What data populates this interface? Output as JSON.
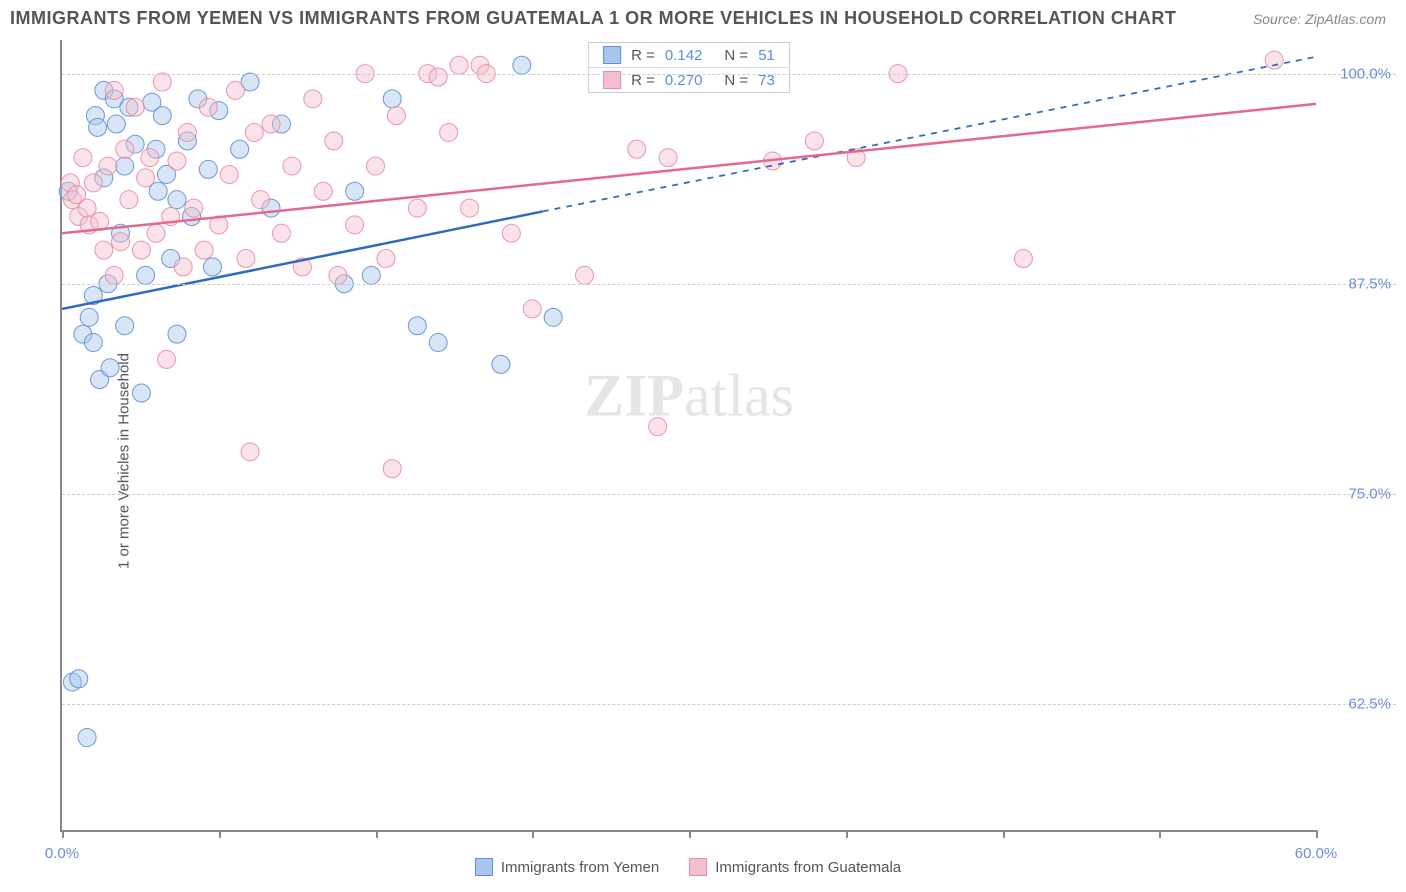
{
  "title": "IMMIGRANTS FROM YEMEN VS IMMIGRANTS FROM GUATEMALA 1 OR MORE VEHICLES IN HOUSEHOLD CORRELATION CHART",
  "source_label": "Source: ZipAtlas.com",
  "y_axis_label": "1 or more Vehicles in Household",
  "watermark_bold": "ZIP",
  "watermark_rest": "atlas",
  "chart": {
    "type": "scatter",
    "xlim": [
      0,
      60
    ],
    "ylim": [
      55,
      102
    ],
    "xtick_positions": [
      0,
      7.5,
      15,
      22.5,
      30,
      37.5,
      45,
      52.5,
      60
    ],
    "xtick_labels": {
      "0": "0.0%",
      "60": "60.0%"
    },
    "ytick_positions": [
      62.5,
      75.0,
      87.5,
      100.0
    ],
    "ytick_labels": [
      "62.5%",
      "75.0%",
      "87.5%",
      "100.0%"
    ],
    "grid_color": "#cccccc",
    "axis_color": "#888888",
    "background_color": "#ffffff",
    "marker_radius": 9,
    "marker_opacity": 0.45,
    "marker_stroke_opacity": 0.9,
    "series": [
      {
        "name": "Immigrants from Yemen",
        "color_fill": "#a8c5eb",
        "color_stroke": "#5b8fd6",
        "line_color": "#2e6bc0",
        "line_width": 2.5,
        "stats": {
          "R": "0.142",
          "N": "51"
        },
        "trend": {
          "x1": 0,
          "y1": 86.0,
          "x2": 23,
          "y2": 91.8,
          "x_dash_to": 60,
          "y_dash_to": 101.0
        },
        "points": [
          [
            0.3,
            93
          ],
          [
            0.5,
            63.8
          ],
          [
            0.8,
            64.0
          ],
          [
            1.0,
            84.5
          ],
          [
            1.2,
            60.5
          ],
          [
            1.3,
            85.5
          ],
          [
            1.5,
            86.8
          ],
          [
            1.5,
            84.0
          ],
          [
            1.6,
            97.5
          ],
          [
            1.7,
            96.8
          ],
          [
            1.8,
            81.8
          ],
          [
            2.0,
            93.8
          ],
          [
            2.0,
            99.0
          ],
          [
            2.2,
            87.5
          ],
          [
            2.3,
            82.5
          ],
          [
            2.5,
            98.5
          ],
          [
            2.6,
            97.0
          ],
          [
            2.8,
            90.5
          ],
          [
            3.0,
            94.5
          ],
          [
            3.0,
            85.0
          ],
          [
            3.2,
            98.0
          ],
          [
            3.5,
            95.8
          ],
          [
            3.8,
            81.0
          ],
          [
            4.0,
            88.0
          ],
          [
            4.3,
            98.3
          ],
          [
            4.5,
            95.5
          ],
          [
            4.6,
            93.0
          ],
          [
            4.8,
            97.5
          ],
          [
            5.0,
            94.0
          ],
          [
            5.2,
            89.0
          ],
          [
            5.5,
            92.5
          ],
          [
            5.5,
            84.5
          ],
          [
            6.0,
            96.0
          ],
          [
            6.2,
            91.5
          ],
          [
            6.5,
            98.5
          ],
          [
            7.0,
            94.3
          ],
          [
            7.2,
            88.5
          ],
          [
            7.5,
            97.8
          ],
          [
            8.5,
            95.5
          ],
          [
            9.0,
            99.5
          ],
          [
            10.0,
            92.0
          ],
          [
            10.5,
            97.0
          ],
          [
            13.5,
            87.5
          ],
          [
            14.0,
            93.0
          ],
          [
            14.8,
            88.0
          ],
          [
            15.8,
            98.5
          ],
          [
            17.0,
            85.0
          ],
          [
            18.0,
            84.0
          ],
          [
            21.0,
            82.7
          ],
          [
            22.0,
            100.5
          ],
          [
            23.5,
            85.5
          ]
        ]
      },
      {
        "name": "Immigrants from Guatemala",
        "color_fill": "#f5c0cd",
        "color_stroke": "#e88ba5",
        "line_color": "#e26a8d",
        "line_width": 2.5,
        "stats": {
          "R": "0.270",
          "N": "73"
        },
        "trend": {
          "x1": 0,
          "y1": 90.5,
          "x2": 60,
          "y2": 98.2
        },
        "points": [
          [
            0.4,
            93.5
          ],
          [
            0.5,
            92.5
          ],
          [
            0.7,
            92.8
          ],
          [
            0.8,
            91.5
          ],
          [
            1.0,
            95.0
          ],
          [
            1.2,
            92.0
          ],
          [
            1.3,
            91.0
          ],
          [
            1.5,
            93.5
          ],
          [
            1.8,
            91.2
          ],
          [
            2.0,
            89.5
          ],
          [
            2.2,
            94.5
          ],
          [
            2.5,
            88.0
          ],
          [
            2.5,
            99.0
          ],
          [
            2.8,
            90.0
          ],
          [
            3.0,
            95.5
          ],
          [
            3.2,
            92.5
          ],
          [
            3.5,
            98.0
          ],
          [
            3.8,
            89.5
          ],
          [
            4.0,
            93.8
          ],
          [
            4.2,
            95.0
          ],
          [
            4.5,
            90.5
          ],
          [
            4.8,
            99.5
          ],
          [
            5.0,
            83.0
          ],
          [
            5.2,
            91.5
          ],
          [
            5.5,
            94.8
          ],
          [
            5.8,
            88.5
          ],
          [
            6.0,
            96.5
          ],
          [
            6.3,
            92.0
          ],
          [
            6.8,
            89.5
          ],
          [
            7.0,
            98.0
          ],
          [
            7.5,
            91.0
          ],
          [
            8.0,
            94.0
          ],
          [
            8.3,
            99.0
          ],
          [
            8.8,
            89.0
          ],
          [
            9.0,
            77.5
          ],
          [
            9.2,
            96.5
          ],
          [
            9.5,
            92.5
          ],
          [
            10.0,
            97.0
          ],
          [
            10.5,
            90.5
          ],
          [
            11.0,
            94.5
          ],
          [
            11.5,
            88.5
          ],
          [
            12.0,
            98.5
          ],
          [
            12.5,
            93.0
          ],
          [
            13.0,
            96.0
          ],
          [
            13.2,
            88.0
          ],
          [
            14.0,
            91.0
          ],
          [
            14.5,
            100.0
          ],
          [
            15.0,
            94.5
          ],
          [
            15.5,
            89.0
          ],
          [
            15.8,
            76.5
          ],
          [
            16.0,
            97.5
          ],
          [
            17.0,
            92.0
          ],
          [
            17.5,
            100.0
          ],
          [
            18.0,
            99.8
          ],
          [
            18.5,
            96.5
          ],
          [
            19.0,
            100.5
          ],
          [
            19.5,
            92.0
          ],
          [
            20.0,
            100.5
          ],
          [
            20.3,
            100.0
          ],
          [
            21.5,
            90.5
          ],
          [
            22.5,
            86.0
          ],
          [
            25.0,
            88.0
          ],
          [
            27.5,
            95.5
          ],
          [
            28.0,
            100.0
          ],
          [
            28.5,
            79.0
          ],
          [
            29.0,
            95.0
          ],
          [
            32.0,
            100.8
          ],
          [
            34.0,
            94.8
          ],
          [
            36.0,
            96.0
          ],
          [
            38.0,
            95.0
          ],
          [
            40.0,
            100.0
          ],
          [
            46.0,
            89.0
          ],
          [
            58.0,
            100.8
          ]
        ]
      }
    ],
    "legend_labels": {
      "R": "R  =",
      "N": "N  ="
    }
  },
  "bottom_legend": [
    {
      "label": "Immigrants from Yemen",
      "fill": "#a8c5eb",
      "stroke": "#5b8fd6"
    },
    {
      "label": "Immigrants from Guatemala",
      "fill": "#f5c0cd",
      "stroke": "#e88ba5"
    }
  ],
  "title_fontsize": 18,
  "label_fontsize": 15
}
